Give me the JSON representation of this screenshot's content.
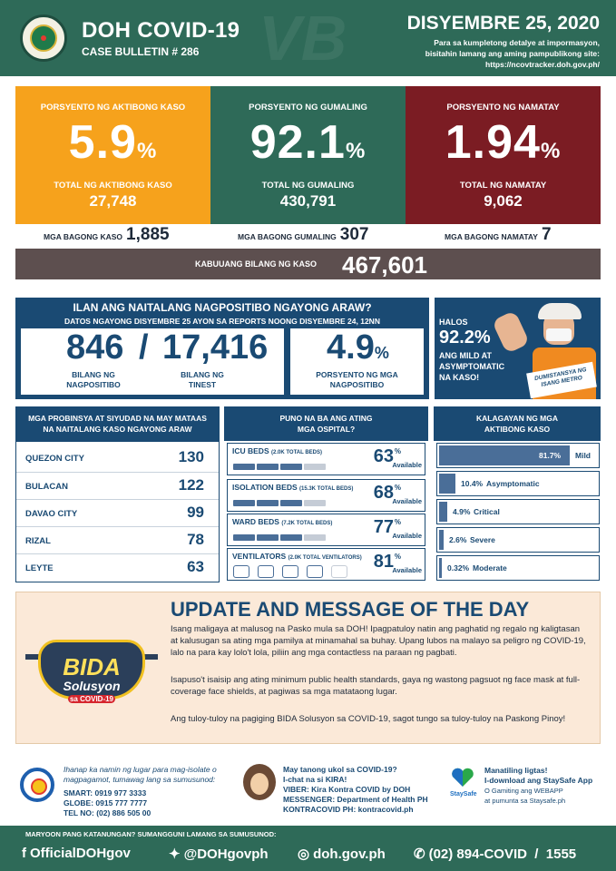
{
  "header": {
    "title": "DOH COVID-19",
    "subtitle": "CASE BULLETIN # 286",
    "date": "DISYEMBRE 25, 2020",
    "info_1": "Para sa kumpletong detalye at impormasyon,",
    "info_2": "bisitahin lamang ang aming pampublikong site:",
    "info_3": "https://ncovtracker.doh.gov.ph/"
  },
  "stats": {
    "active": {
      "label": "PORSYENTO NG AKTIBONG KASO",
      "percent": "5.9",
      "unit": "%",
      "total_label": "TOTAL NG AKTIBONG KASO",
      "total": "27,748",
      "color": "#f6a21c"
    },
    "recovered": {
      "label": "PORSYENTO NG GUMALING",
      "percent": "92.1",
      "unit": "%",
      "total_label": "TOTAL NG GUMALING",
      "total": "430,791",
      "color": "#2e6a58"
    },
    "deaths": {
      "label": "PORSYENTO NG NAMATAY",
      "percent": "1.94",
      "unit": "%",
      "total_label": "TOTAL NG NAMATAY",
      "total": "9,062",
      "color": "#7b1c23"
    }
  },
  "new_counts": {
    "cases_label": "MGA BAGONG KASO",
    "cases": "1,885",
    "recovered_label": "MGA BAGONG GUMALING",
    "recovered": "307",
    "deaths_label": "MGA BAGONG NAMATAY",
    "deaths": "7"
  },
  "total": {
    "label": "KABUUANG BILANG NG KASO",
    "value": "467,601"
  },
  "positivity": {
    "title": "ILAN ANG NAITALANG NAGPOSITIBO NGAYONG ARAW?",
    "subtitle": "DATOS NGAYONG DISYEMBRE 25 AYON SA REPORTS NOONG DISYEMBRE 24, 12NN",
    "positive": "846",
    "slash": "/",
    "tested": "17,416",
    "positive_label_1": "BILANG NG",
    "positive_label_2": "NAGPOSITIBO",
    "tested_label_1": "BILANG NG",
    "tested_label_2": "TINEST",
    "rate": "4.9",
    "rate_unit": "%",
    "rate_label_1": "PORSYENTO NG MGA",
    "rate_label_2": "NAGPOSITIBO"
  },
  "mild_box": {
    "halos": "HALOS",
    "percent": "92.2%",
    "text": "ANG MILD AT ASYMPTOMATIC NA KASO!",
    "sign": "DUMISTANSYA NG ISANG METRO"
  },
  "provinces": {
    "header_1": "MGA PROBINSYA AT SIYUDAD NA MAY MATAAS",
    "header_2": "NA NAITALANG KASO NGAYONG ARAW",
    "rows": [
      {
        "name": "QUEZON CITY",
        "value": "130"
      },
      {
        "name": "BULACAN",
        "value": "122"
      },
      {
        "name": "DAVAO CITY",
        "value": "99"
      },
      {
        "name": "RIZAL",
        "value": "78"
      },
      {
        "name": "LEYTE",
        "value": "63"
      }
    ]
  },
  "hospital": {
    "header_1": "PUNO NA BA ANG ATING",
    "header_2": "MGA OSPITAL?",
    "pct_unit": "%",
    "available": "Available",
    "beds": [
      {
        "name": "ICU BEDS",
        "total": "(2.0K TOTAL BEDS)",
        "pct": "63",
        "available_fraction": 0.63
      },
      {
        "name": "ISOLATION BEDS",
        "total": "(15.3K TOTAL BEDS)",
        "pct": "68",
        "available_fraction": 0.68
      },
      {
        "name": "WARD BEDS",
        "total": "(7.2K TOTAL BEDS)",
        "pct": "77",
        "available_fraction": 0.77
      },
      {
        "name": "VENTILATORS",
        "total": "(2.0K TOTAL VENTILATORS)",
        "pct": "81",
        "available_fraction": 0.81
      }
    ]
  },
  "active_status": {
    "header_1": "KALAGAYAN NG MGA",
    "header_2": "AKTIBONG KASO",
    "rows": [
      {
        "pct": "81.7%",
        "name": "Mild",
        "fraction": 0.817
      },
      {
        "pct": "10.4%",
        "name": "Asymptomatic",
        "fraction": 0.104
      },
      {
        "pct": "4.9%",
        "name": "Critical",
        "fraction": 0.049
      },
      {
        "pct": "2.6%",
        "name": "Severe",
        "fraction": 0.026
      },
      {
        "pct": "0.32%",
        "name": "Moderate",
        "fraction": 0.0032
      }
    ]
  },
  "update": {
    "title": "UPDATE AND MESSAGE OF THE DAY",
    "p1": "Isang maligaya at malusog na Pasko mula sa DOH! Ipagpatuloy natin ang paghatid ng regalo ng kaligtasan at kalusugan sa ating mga pamilya at minamahal sa buhay. Upang lubos na malayo sa peligro ng COVID-19, lalo na para kay lolo't lola, piliin ang mga contactless na paraan ng pagbati.",
    "p2": "Isapuso't isaisip ang ating minimum public health standards, gaya ng wastong pagsuot ng face mask at full-coverage face shields, at pagiwas sa mga matataong lugar.",
    "p3": "Ang tuloy-tuloy na pagiging BIDA Solusyon sa COVID-19, sagot tungo sa tuloy-tuloy na Paskong Pinoy!",
    "logo_1": "BIDA",
    "logo_2": "Solusyon",
    "logo_3": "sa COVID-19"
  },
  "contact": {
    "isolate_1": "Ihanap ka namin ng lugar para mag-isolate o",
    "isolate_2": "magpagamot, tumawag lang sa sumusunod:",
    "smart": "SMART: 0919 977 3333",
    "globe": "GLOBE: 0915 777 7777",
    "tel": "TEL NO: (02) 886 505 00",
    "kira_1": "May tanong ukol sa COVID-19?",
    "kira_2": "I-chat na si KIRA!",
    "viber": "VIBER: Kira Kontra COVID by DOH",
    "messenger": "MESSENGER: Department of Health PH",
    "kontracovid": "KONTRACOVID PH: kontracovid.ph",
    "safe_1": "Manatiling ligtas!",
    "safe_2": "I-download ang StaySafe App",
    "safe_3": "O Gamiting ang WEBAPP",
    "safe_4": "at pumunta sa Staysafe.ph",
    "staysafe_logo": "StaySafe"
  },
  "footer": {
    "question": "MARYOON PANG KATANUNGAN? SUMANGGUNI LAMANG SA SUMUSUNOD:",
    "facebook": "OfficialDOHgov",
    "twitter": "@DOHgovph",
    "web": "doh.gov.ph",
    "phone": "(02) 894-COVID  /  1555"
  }
}
